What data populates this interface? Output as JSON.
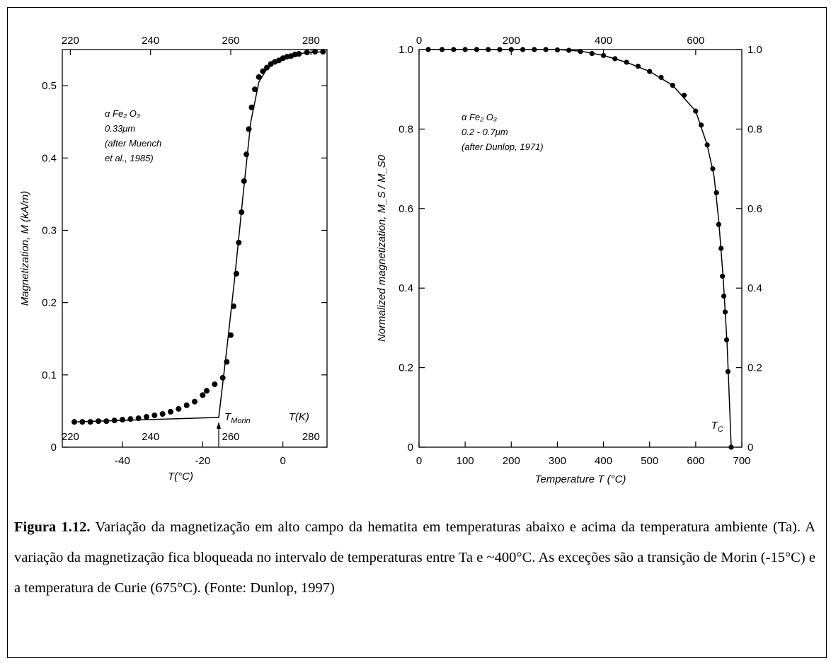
{
  "caption": {
    "label": "Figura 1.12.",
    "text": "Variação da magnetização em alto campo da hematita em temperaturas abaixo e acima da temperatura ambiente (Ta). A variação da magnetização fica bloqueada no intervalo de temperaturas entre Ta e ~400°C. As exceções são a transição de Morin (-15°C) e a temperatura de Curie (675°C). (Fonte: Dunlop, 1997)"
  },
  "chart_data": [
    {
      "type": "scatter",
      "xlabel": "T(°C)",
      "ylabel": "Magnetization, M (kA/m)",
      "xlim": [
        -55,
        11
      ],
      "ylim": [
        0,
        0.55
      ],
      "x_ticks": [
        "-40",
        "-20",
        "0"
      ],
      "y_ticks": [
        "0",
        "0.1",
        "0.2",
        "0.3",
        "0.4",
        "0.5"
      ],
      "top_axis_label": "",
      "top_ticks": [
        "220",
        "240",
        "260",
        "280"
      ],
      "inner_axis_label": "T(K)",
      "inner_ticks": [
        "220",
        "240",
        "260",
        "280"
      ],
      "annotation": [
        "α Fe₂ O₃",
        "0.33μm",
        "(after Muench",
        "et al., 1985)"
      ],
      "marker_label": "T",
      "marker_sub": "Morin",
      "marker_x": -16,
      "series": [
        {
          "points": [
            {
              "x": -52,
              "y": 0.035
            },
            {
              "x": -50,
              "y": 0.035
            },
            {
              "x": -48,
              "y": 0.035
            },
            {
              "x": -46,
              "y": 0.036
            },
            {
              "x": -44,
              "y": 0.036
            },
            {
              "x": -42,
              "y": 0.037
            },
            {
              "x": -40,
              "y": 0.038
            },
            {
              "x": -38,
              "y": 0.039
            },
            {
              "x": -36,
              "y": 0.04
            },
            {
              "x": -34,
              "y": 0.042
            },
            {
              "x": -32,
              "y": 0.044
            },
            {
              "x": -30,
              "y": 0.046
            },
            {
              "x": -28,
              "y": 0.049
            },
            {
              "x": -26,
              "y": 0.053
            },
            {
              "x": -24,
              "y": 0.058
            },
            {
              "x": -22,
              "y": 0.063
            },
            {
              "x": -20,
              "y": 0.072
            },
            {
              "x": -19,
              "y": 0.078
            },
            {
              "x": -17,
              "y": 0.087
            },
            {
              "x": -15,
              "y": 0.096
            },
            {
              "x": -14,
              "y": 0.118
            },
            {
              "x": -13,
              "y": 0.155
            },
            {
              "x": -12.3,
              "y": 0.195
            },
            {
              "x": -11.6,
              "y": 0.24
            },
            {
              "x": -11,
              "y": 0.283
            },
            {
              "x": -10.3,
              "y": 0.325
            },
            {
              "x": -9.7,
              "y": 0.368
            },
            {
              "x": -9.1,
              "y": 0.405
            },
            {
              "x": -8.5,
              "y": 0.44
            },
            {
              "x": -7.8,
              "y": 0.47
            },
            {
              "x": -7,
              "y": 0.495
            },
            {
              "x": -6,
              "y": 0.512
            },
            {
              "x": -5,
              "y": 0.52
            },
            {
              "x": -4,
              "y": 0.525
            },
            {
              "x": -3,
              "y": 0.53
            },
            {
              "x": -2,
              "y": 0.533
            },
            {
              "x": -1,
              "y": 0.535
            },
            {
              "x": 0,
              "y": 0.538
            },
            {
              "x": 1,
              "y": 0.54
            },
            {
              "x": 2,
              "y": 0.541
            },
            {
              "x": 3,
              "y": 0.543
            },
            {
              "x": 4,
              "y": 0.544
            },
            {
              "x": 6,
              "y": 0.546
            },
            {
              "x": 8,
              "y": 0.547
            },
            {
              "x": 10,
              "y": 0.547
            }
          ],
          "curve": [
            {
              "x": -52,
              "y": 0.035
            },
            {
              "x": -17,
              "y": 0.041
            },
            {
              "x": -16,
              "y": 0.041
            },
            {
              "x": -14,
              "y": 0.135
            },
            {
              "x": -12,
              "y": 0.235
            },
            {
              "x": -10,
              "y": 0.345
            },
            {
              "x": -8,
              "y": 0.45
            },
            {
              "x": -6,
              "y": 0.505
            },
            {
              "x": -4,
              "y": 0.523
            },
            {
              "x": -2,
              "y": 0.532
            },
            {
              "x": 0,
              "y": 0.538
            },
            {
              "x": 2,
              "y": 0.542
            },
            {
              "x": 5,
              "y": 0.545
            },
            {
              "x": 10,
              "y": 0.547
            }
          ]
        }
      ]
    },
    {
      "type": "scatter",
      "xlabel": "Temperature T (°C)",
      "ylabel": "Normalized magnetization, M_S / M_S0",
      "xlim": [
        0,
        700
      ],
      "ylim": [
        0,
        1.0
      ],
      "x_ticks": [
        "0",
        "100",
        "200",
        "300",
        "400",
        "500",
        "600",
        "700"
      ],
      "y_ticks": [
        "0",
        "0.2",
        "0.4",
        "0.6",
        "0.8",
        "1.0"
      ],
      "top_ticks": [
        "0",
        "200",
        "400",
        "600"
      ],
      "right_ticks": [
        "0",
        "0.2",
        "0.4",
        "0.6",
        "0.8",
        "1.0"
      ],
      "annotation": [
        "α Fe₂ O₃",
        "0.2 - 0.7μm",
        "(after Dunlop, 1971)"
      ],
      "marker_label": "T",
      "marker_sub": "C",
      "marker_x": 675,
      "series": [
        {
          "points": [
            {
              "x": 20,
              "y": 1.0
            },
            {
              "x": 50,
              "y": 1.0
            },
            {
              "x": 75,
              "y": 1.0
            },
            {
              "x": 100,
              "y": 1.0
            },
            {
              "x": 125,
              "y": 1.0
            },
            {
              "x": 150,
              "y": 1.0
            },
            {
              "x": 175,
              "y": 1.0
            },
            {
              "x": 200,
              "y": 1.0
            },
            {
              "x": 225,
              "y": 1.0
            },
            {
              "x": 250,
              "y": 1.0
            },
            {
              "x": 275,
              "y": 1.0
            },
            {
              "x": 300,
              "y": 0.999
            },
            {
              "x": 325,
              "y": 0.998
            },
            {
              "x": 350,
              "y": 0.995
            },
            {
              "x": 375,
              "y": 0.99
            },
            {
              "x": 400,
              "y": 0.985
            },
            {
              "x": 425,
              "y": 0.977
            },
            {
              "x": 450,
              "y": 0.968
            },
            {
              "x": 475,
              "y": 0.958
            },
            {
              "x": 500,
              "y": 0.945
            },
            {
              "x": 525,
              "y": 0.93
            },
            {
              "x": 550,
              "y": 0.91
            },
            {
              "x": 575,
              "y": 0.885
            },
            {
              "x": 600,
              "y": 0.845
            },
            {
              "x": 612,
              "y": 0.81
            },
            {
              "x": 625,
              "y": 0.76
            },
            {
              "x": 637,
              "y": 0.7
            },
            {
              "x": 645,
              "y": 0.64
            },
            {
              "x": 650,
              "y": 0.56
            },
            {
              "x": 655,
              "y": 0.5
            },
            {
              "x": 658,
              "y": 0.43
            },
            {
              "x": 661,
              "y": 0.38
            },
            {
              "x": 664,
              "y": 0.34
            },
            {
              "x": 667,
              "y": 0.27
            },
            {
              "x": 670,
              "y": 0.19
            },
            {
              "x": 677,
              "y": 0.0
            }
          ],
          "curve": [
            {
              "x": 20,
              "y": 1.0
            },
            {
              "x": 300,
              "y": 1.0
            },
            {
              "x": 350,
              "y": 0.996
            },
            {
              "x": 400,
              "y": 0.985
            },
            {
              "x": 450,
              "y": 0.968
            },
            {
              "x": 500,
              "y": 0.945
            },
            {
              "x": 550,
              "y": 0.91
            },
            {
              "x": 600,
              "y": 0.845
            },
            {
              "x": 625,
              "y": 0.76
            },
            {
              "x": 640,
              "y": 0.68
            },
            {
              "x": 650,
              "y": 0.57
            },
            {
              "x": 660,
              "y": 0.42
            },
            {
              "x": 668,
              "y": 0.26
            },
            {
              "x": 673,
              "y": 0.12
            },
            {
              "x": 677,
              "y": 0.0
            }
          ]
        }
      ]
    }
  ]
}
